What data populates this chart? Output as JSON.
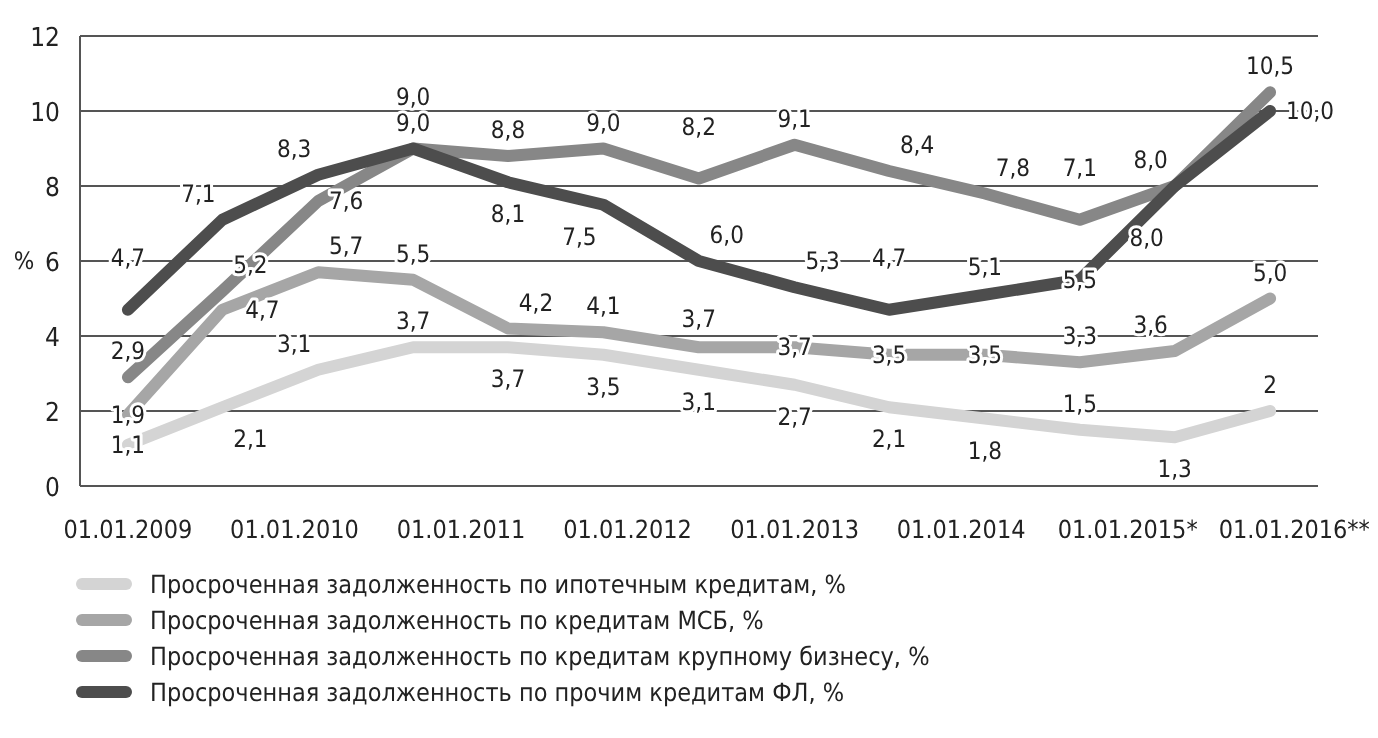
{
  "chart_data": {
    "type": "line",
    "ylabel": "%",
    "x": [
      "2009-01-01",
      "2009-07-27",
      "2010-02-22",
      "2010-09-18",
      "2011-04-14",
      "2011-11-09",
      "2012-06-05",
      "2013-01-01",
      "2013-07-27",
      "2014-02-22",
      "2014-09-18",
      "2015-04-14",
      "2015-11-09"
    ],
    "xlim": [
      "2008-09-18",
      "2016-02-22"
    ],
    "xticks": [
      {
        "value": "2009-01-01",
        "label": "01.01.2009"
      },
      {
        "value": "2010-01-01",
        "label": "01.01.2010"
      },
      {
        "value": "2011-01-01",
        "label": "01.01.2011"
      },
      {
        "value": "2012-01-01",
        "label": "01.01.2012"
      },
      {
        "value": "2013-01-01",
        "label": "01.01.2013"
      },
      {
        "value": "2014-01-01",
        "label": "01.01.2014"
      },
      {
        "value": "2015-01-01",
        "label": "01.01.2015*"
      },
      {
        "value": "2016-01-01",
        "label": "01.01.2016**"
      }
    ],
    "ylim": [
      0,
      12
    ],
    "yticks": [
      0,
      2,
      4,
      6,
      8,
      10,
      12
    ],
    "grid": "y",
    "legend": "bottom",
    "line_style": "solid",
    "series": [
      {
        "name": "Просроченная задолженность по ипотечным кредитам, %",
        "color": "#d4d4d4",
        "values": [
          1.1,
          2.1,
          3.1,
          3.7,
          3.7,
          3.5,
          3.1,
          2.7,
          2.1,
          1.8,
          1.5,
          1.3,
          2
        ],
        "value_labels": [
          "1,1",
          "2,1",
          "3,1",
          "3,7",
          "3,7",
          "3,5",
          "3,1",
          "2,7",
          "2,1",
          "1,8",
          "1,5",
          "1,3",
          "2"
        ]
      },
      {
        "name": "Просроченная задолженность по кредитам МСБ, %",
        "color": "#a6a6a6",
        "values": [
          1.9,
          4.7,
          5.7,
          5.5,
          4.2,
          4.1,
          3.7,
          3.7,
          3.5,
          3.5,
          3.3,
          3.6,
          5.0
        ],
        "value_labels": [
          "1,9",
          "4,7",
          "5,7",
          "5,5",
          "4,2",
          "4,1",
          "3,7",
          "3,7",
          "3,5",
          "3,5",
          "3,3",
          "3,6",
          "5,0"
        ]
      },
      {
        "name": "Просроченная задолженность по кредитам крупному бизнесу, %",
        "color": "#878787",
        "values": [
          2.9,
          5.2,
          7.6,
          9.0,
          8.8,
          9.0,
          8.2,
          9.1,
          8.4,
          7.8,
          7.1,
          8.0,
          10.5
        ],
        "value_labels": [
          "2,9",
          "5,2",
          "7,6",
          "9,0",
          "8,8",
          "9,0",
          "8,2",
          "9,1",
          "8,4",
          "7,8",
          "7,1",
          "8,0",
          "10,5"
        ]
      },
      {
        "name": "Просроченная задолженность по прочим кредитам ФЛ, %",
        "color": "#4d4d4d",
        "values": [
          4.7,
          7.1,
          8.3,
          9.0,
          8.1,
          7.5,
          6.0,
          5.3,
          4.7,
          5.1,
          5.5,
          8.0,
          10.0
        ],
        "value_labels": [
          "4,7",
          "7,1",
          "8,3",
          "9,0",
          "8,1",
          "7,5",
          "6,0",
          "5,3",
          "4,7",
          "5,1",
          "5,5",
          "8,0",
          "10,0"
        ]
      }
    ]
  }
}
